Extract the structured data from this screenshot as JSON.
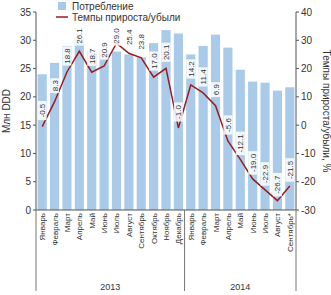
{
  "chart_data": {
    "type": "bar",
    "y_label": "Млн DDD",
    "y2_label": "Темпы прироста/убыли, %",
    "categories": [
      "Январь",
      "Февраль",
      "Март",
      "Апрель",
      "Май",
      "Июнь",
      "Июль",
      "Август",
      "Сентябрь",
      "Октябрь",
      "Ноябрь",
      "Декабрь",
      "Январь",
      "Февраль",
      "Март",
      "Апрель",
      "Май",
      "Июнь",
      "Июль",
      "Август",
      "Сентябрь*"
    ],
    "groups": [
      {
        "label": "2013",
        "count": 12
      },
      {
        "label": "2014",
        "count": 9
      }
    ],
    "series": [
      {
        "name": "Потребление",
        "type": "bar",
        "color": "#a9cbe9",
        "values": [
          24,
          26,
          29,
          30.5,
          28,
          28,
          28,
          27.5,
          27,
          29.5,
          31.8,
          31.2,
          27.5,
          29,
          31,
          28.7,
          24.8,
          22.7,
          22.5,
          21.1,
          21.7
        ]
      },
      {
        "name": "Темпы прироста/убыли",
        "type": "line",
        "axis": "y2",
        "color": "#9b1c1c",
        "data_labels": true,
        "values": [
          -0.5,
          8.3,
          18.8,
          26.1,
          18.7,
          20.9,
          29.0,
          25.4,
          23.8,
          17.0,
          20.1,
          -1.0,
          14.2,
          11.4,
          6.9,
          -5.6,
          -12.1,
          -19.0,
          -22.9,
          -26.7,
          -21.5
        ],
        "value_labels": [
          "-0.5",
          "8.3",
          "18.8",
          "26.1",
          "18.7",
          "20.9",
          "29.0",
          "25.4",
          "23.8",
          "17.0",
          "20.1",
          "-1.0",
          "14.2",
          "11.4",
          "6.9",
          "-5.6",
          "-12.1",
          "-19.0",
          "-22.9",
          "-26.7",
          "-21.5"
        ]
      }
    ],
    "ylim": [
      0,
      35
    ],
    "yticks": [
      0,
      5,
      10,
      15,
      20,
      25,
      30,
      35
    ],
    "y2lim": [
      -30,
      40
    ],
    "y2ticks": [
      -30,
      -20,
      -10,
      0,
      10,
      20,
      30,
      40
    ],
    "grid": false,
    "legend": "top-left"
  }
}
